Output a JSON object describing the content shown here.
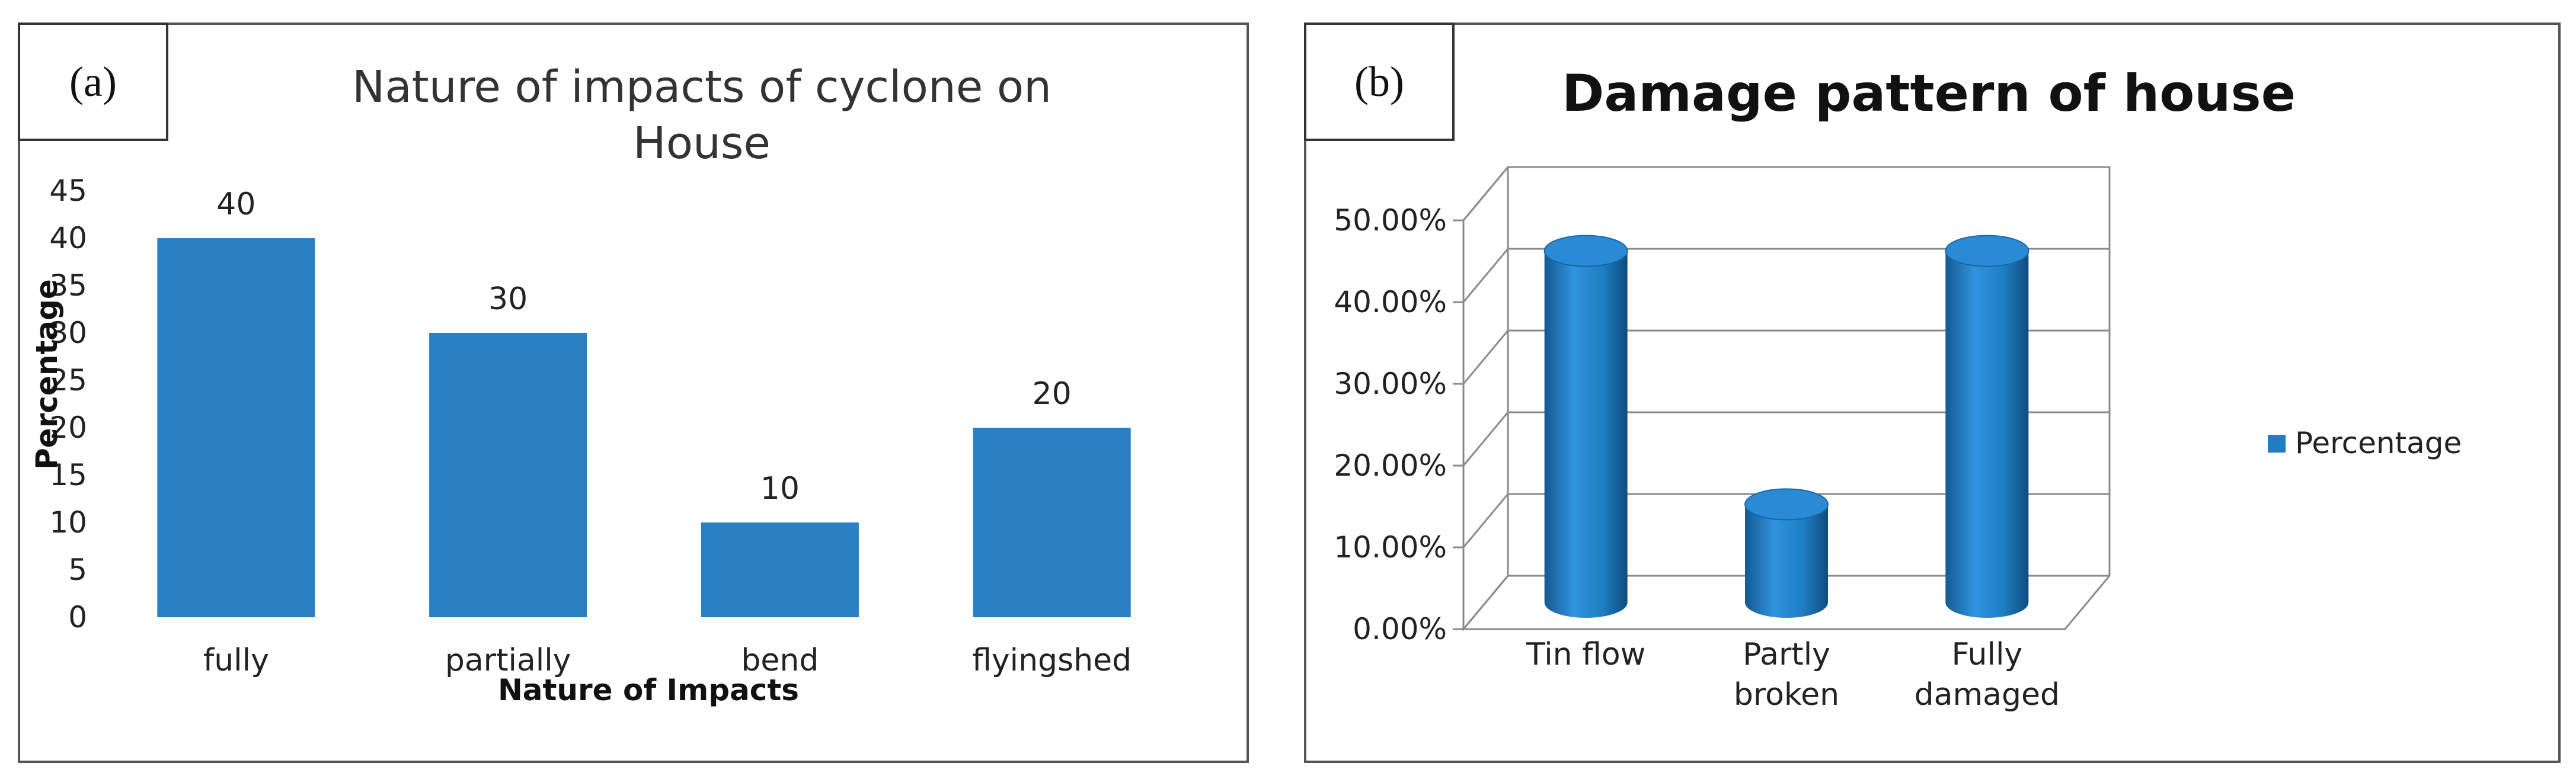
{
  "chart_data": [
    {
      "panel_label": "(a)",
      "type": "bar",
      "title": "Nature of impacts of cyclone on House",
      "title_lines": [
        "Nature of impacts of cyclone on",
        "House"
      ],
      "xlabel": "Nature of Impacts",
      "ylabel": "Percentage",
      "categories": [
        "fully",
        "partially",
        "bend",
        "flyingshed"
      ],
      "values": [
        40,
        30,
        10,
        20
      ],
      "data_labels": [
        "40",
        "30",
        "10",
        "20"
      ],
      "ylim": [
        0,
        45
      ],
      "yticks": [
        0,
        5,
        10,
        15,
        20,
        25,
        30,
        35,
        40,
        45
      ],
      "ytick_labels": [
        "0",
        "5",
        "10",
        "15",
        "20",
        "25",
        "30",
        "35",
        "40",
        "45"
      ],
      "grid": false,
      "legend": null,
      "bar_color": "#2a80c2"
    },
    {
      "panel_label": "(b)",
      "type": "bar",
      "style": "3d-cylinder",
      "title": "Damage pattern of house",
      "categories": [
        "Tin flow",
        "Partly broken",
        "Fully damaged"
      ],
      "category_lines": [
        [
          "Tin flow"
        ],
        [
          "Partly",
          "broken"
        ],
        [
          "Fully",
          "damaged"
        ]
      ],
      "series": [
        {
          "name": "Percentage",
          "values": [
            0.43,
            0.12,
            0.43
          ]
        }
      ],
      "ylim": [
        0,
        0.5
      ],
      "yticks": [
        0,
        0.1,
        0.2,
        0.3,
        0.4,
        0.5
      ],
      "ytick_labels": [
        "0.00%",
        "10.00%",
        "20.00%",
        "30.00%",
        "40.00%",
        "50.00%"
      ],
      "grid": true,
      "legend": "right",
      "bar_color": "#1f7ec4"
    }
  ]
}
